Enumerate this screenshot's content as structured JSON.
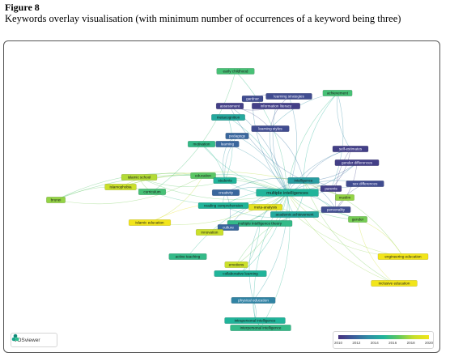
{
  "figure": {
    "label": "Figure 8",
    "caption": "Keywords overlay visualisation (with minimum number of occurrences of a keyword being three)"
  },
  "software": {
    "name": "VOSviewer",
    "icon": "vosviewer-logo-icon"
  },
  "legend": {
    "colors": [
      "#47327f",
      "#3b5d9b",
      "#2f8ea6",
      "#20b49a",
      "#61c95e",
      "#c7df2c",
      "#f2e51a"
    ],
    "ticks": [
      "2010",
      "2012",
      "2014",
      "2016",
      "2018",
      "2020"
    ],
    "range": [
      2010,
      2020
    ]
  },
  "nodes": [
    {
      "id": "early-childhood",
      "label": "early childhood",
      "year": 2016
    },
    {
      "id": "gardner",
      "label": "gardner",
      "year": 2011
    },
    {
      "id": "learning-strategies",
      "label": "learning strategies",
      "year": 2011
    },
    {
      "id": "achievement",
      "label": "achievement",
      "year": 2016
    },
    {
      "id": "assessment",
      "label": "assessment",
      "year": 2010.5
    },
    {
      "id": "information-literacy",
      "label": "information literacy",
      "year": 2010.5
    },
    {
      "id": "metacognition",
      "label": "metacognition",
      "year": 2014.5
    },
    {
      "id": "learning-styles",
      "label": "learning styles",
      "year": 2011
    },
    {
      "id": "pedagogy",
      "label": "pedagogy",
      "year": 2012
    },
    {
      "id": "motivation",
      "label": "motivation",
      "year": 2015.5
    },
    {
      "id": "learning",
      "label": "learning",
      "year": 2012
    },
    {
      "id": "self-estimates",
      "label": "self-estimates",
      "year": 2010.5
    },
    {
      "id": "gender-differences",
      "label": "gender differences",
      "year": 2010.5
    },
    {
      "id": "islamic-school",
      "label": "islamic school",
      "year": 2018
    },
    {
      "id": "islamophobia",
      "label": "islamophobia",
      "year": 2018.5
    },
    {
      "id": "curriculum",
      "label": "curriculum",
      "year": 2016
    },
    {
      "id": "education",
      "label": "education",
      "year": 2016.5
    },
    {
      "id": "students",
      "label": "students",
      "year": 2015
    },
    {
      "id": "intelligence",
      "label": "intelligence",
      "year": 2014
    },
    {
      "id": "sex-differences",
      "label": "sex differences",
      "year": 2011
    },
    {
      "id": "parents",
      "label": "parents",
      "year": 2010.5
    },
    {
      "id": "muslim",
      "label": "muslim",
      "year": 2017.5
    },
    {
      "id": "creativity",
      "label": "creativity",
      "year": 2012
    },
    {
      "id": "multiple-intelligences",
      "label": "multiple intelligences",
      "year": 2015
    },
    {
      "id": "personality",
      "label": "personality",
      "year": 2011
    },
    {
      "id": "reading-comprehension",
      "label": "reading comprehension",
      "year": 2015
    },
    {
      "id": "meta-analysis",
      "label": "meta-analysis",
      "year": 2019.5
    },
    {
      "id": "academic-achievement",
      "label": "academic achievement",
      "year": 2014.5
    },
    {
      "id": "islamic-education",
      "label": "islamic education",
      "year": 2020
    },
    {
      "id": "multiple-intelligence-theory",
      "label": "multiple intelligence theory",
      "year": 2015.5
    },
    {
      "id": "culture",
      "label": "culture",
      "year": 2012
    },
    {
      "id": "gender",
      "label": "gender",
      "year": 2017
    },
    {
      "id": "innovation",
      "label": "innovation",
      "year": 2018.5
    },
    {
      "id": "active-teaching",
      "label": "active teaching",
      "year": 2015.5
    },
    {
      "id": "emotions",
      "label": "emotions",
      "year": 2018.5
    },
    {
      "id": "engineering-education",
      "label": "engineering education",
      "year": 2020
    },
    {
      "id": "collaborative-learning",
      "label": "collaborative learning",
      "year": 2015
    },
    {
      "id": "inclusive-education",
      "label": "inclusive education",
      "year": 2020
    },
    {
      "id": "physical-education",
      "label": "physical education",
      "year": 2013
    },
    {
      "id": "intrapersonal-intelligence",
      "label": "intrapersonal intelligence",
      "year": 2015
    },
    {
      "id": "interpersonal-intelligence",
      "label": "interpersonal intelligence",
      "year": 2015.5
    },
    {
      "id": "brunei",
      "label": "brunei",
      "year": 2017.5
    }
  ],
  "links": [
    [
      "multiple-intelligences",
      "early-childhood"
    ],
    [
      "multiple-intelligences",
      "gardner"
    ],
    [
      "multiple-intelligences",
      "learning-strategies"
    ],
    [
      "multiple-intelligences",
      "achievement"
    ],
    [
      "multiple-intelligences",
      "assessment"
    ],
    [
      "multiple-intelligences",
      "information-literacy"
    ],
    [
      "multiple-intelligences",
      "metacognition"
    ],
    [
      "multiple-intelligences",
      "learning-styles"
    ],
    [
      "multiple-intelligences",
      "pedagogy"
    ],
    [
      "multiple-intelligences",
      "motivation"
    ],
    [
      "multiple-intelligences",
      "learning"
    ],
    [
      "multiple-intelligences",
      "self-estimates"
    ],
    [
      "multiple-intelligences",
      "gender-differences"
    ],
    [
      "multiple-intelligences",
      "islamic-school"
    ],
    [
      "multiple-intelligences",
      "islamophobia"
    ],
    [
      "multiple-intelligences",
      "curriculum"
    ],
    [
      "multiple-intelligences",
      "education"
    ],
    [
      "multiple-intelligences",
      "students"
    ],
    [
      "multiple-intelligences",
      "intelligence"
    ],
    [
      "multiple-intelligences",
      "sex-differences"
    ],
    [
      "multiple-intelligences",
      "parents"
    ],
    [
      "multiple-intelligences",
      "muslim"
    ],
    [
      "multiple-intelligences",
      "creativity"
    ],
    [
      "multiple-intelligences",
      "personality"
    ],
    [
      "multiple-intelligences",
      "reading-comprehension"
    ],
    [
      "multiple-intelligences",
      "meta-analysis"
    ],
    [
      "multiple-intelligences",
      "academic-achievement"
    ],
    [
      "multiple-intelligences",
      "islamic-education"
    ],
    [
      "multiple-intelligences",
      "multiple-intelligence-theory"
    ],
    [
      "multiple-intelligences",
      "culture"
    ],
    [
      "multiple-intelligences",
      "gender"
    ],
    [
      "multiple-intelligences",
      "innovation"
    ],
    [
      "multiple-intelligences",
      "active-teaching"
    ],
    [
      "multiple-intelligences",
      "emotions"
    ],
    [
      "multiple-intelligences",
      "engineering-education"
    ],
    [
      "multiple-intelligences",
      "collaborative-learning"
    ],
    [
      "multiple-intelligences",
      "inclusive-education"
    ],
    [
      "multiple-intelligences",
      "physical-education"
    ],
    [
      "multiple-intelligences",
      "intrapersonal-intelligence"
    ],
    [
      "multiple-intelligences",
      "interpersonal-intelligence"
    ],
    [
      "multiple-intelligences",
      "brunei"
    ],
    [
      "intelligence",
      "personality"
    ],
    [
      "intelligence",
      "sex-differences"
    ],
    [
      "intelligence",
      "self-estimates"
    ],
    [
      "intelligence",
      "gender-differences"
    ],
    [
      "intelligence",
      "parents"
    ],
    [
      "intelligence",
      "culture"
    ],
    [
      "intelligence",
      "achievement"
    ],
    [
      "intelligence",
      "learning-styles"
    ],
    [
      "intelligence",
      "assessment"
    ],
    [
      "intelligence",
      "gender"
    ],
    [
      "intelligence",
      "engineering-education"
    ],
    [
      "intelligence",
      "inclusive-education"
    ],
    [
      "intelligence",
      "academic-achievement"
    ],
    [
      "intelligence",
      "creativity"
    ],
    [
      "personality",
      "self-estimates"
    ],
    [
      "personality",
      "gender-differences"
    ],
    [
      "personality",
      "sex-differences"
    ],
    [
      "parents",
      "self-estimates"
    ],
    [
      "gender",
      "engineering-education"
    ],
    [
      "gender",
      "inclusive-education"
    ],
    [
      "students",
      "learning"
    ],
    [
      "students",
      "motivation"
    ],
    [
      "students",
      "pedagogy"
    ],
    [
      "students",
      "metacognition"
    ],
    [
      "students",
      "islamic-school"
    ],
    [
      "students",
      "brunei"
    ],
    [
      "education",
      "brunei"
    ],
    [
      "education",
      "islamophobia"
    ],
    [
      "education",
      "islamic-education"
    ],
    [
      "curriculum",
      "brunei"
    ],
    [
      "curriculum",
      "islamic-school"
    ],
    [
      "muslim",
      "islamophobia"
    ],
    [
      "learning-styles",
      "learning-strategies"
    ],
    [
      "learning-styles",
      "assessment"
    ],
    [
      "learning-styles",
      "achievement"
    ],
    [
      "assessment",
      "information-literacy"
    ],
    [
      "gardner",
      "learning-strategies"
    ],
    [
      "academic-achievement",
      "meta-analysis"
    ],
    [
      "academic-achievement",
      "reading-comprehension"
    ],
    [
      "academic-achievement",
      "emotions"
    ],
    [
      "academic-achievement",
      "multiple-intelligence-theory"
    ],
    [
      "academic-achievement",
      "engineering-education"
    ],
    [
      "academic-achievement",
      "gender"
    ],
    [
      "multiple-intelligence-theory",
      "physical-education"
    ],
    [
      "multiple-intelligence-theory",
      "collaborative-learning"
    ],
    [
      "multiple-intelligence-theory",
      "innovation"
    ],
    [
      "physical-education",
      "intrapersonal-intelligence"
    ],
    [
      "physical-education",
      "interpersonal-intelligence"
    ],
    [
      "intrapersonal-intelligence",
      "interpersonal-intelligence"
    ],
    [
      "meta-analysis",
      "islamic-education"
    ],
    [
      "reading-comprehension",
      "creativity"
    ],
    [
      "culture",
      "creativity"
    ],
    [
      "motivation",
      "learning"
    ],
    [
      "pedagogy",
      "learning"
    ],
    [
      "early-childhood",
      "curriculum"
    ],
    [
      "achievement",
      "self-estimates"
    ],
    [
      "achievement",
      "parents"
    ]
  ]
}
